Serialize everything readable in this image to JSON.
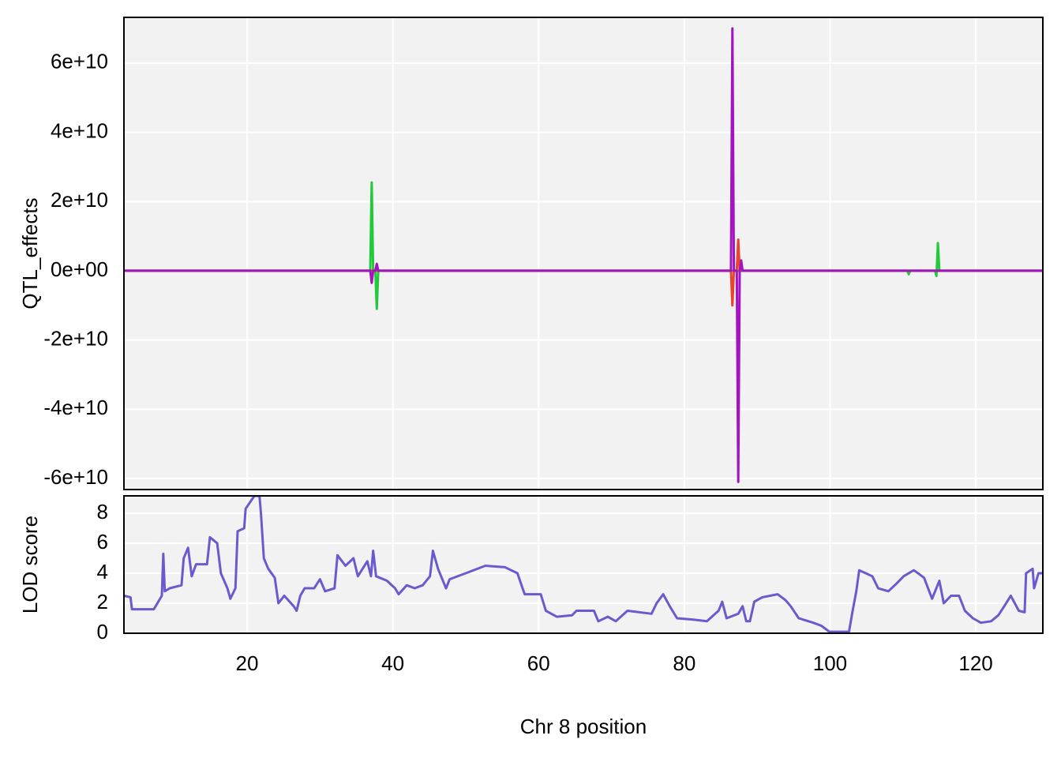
{
  "chart_data": [
    {
      "type": "line",
      "ylabel": "QTL_effects",
      "x": [
        3.1,
        36.9,
        37.1,
        37.3,
        37.6,
        37.8,
        38.0,
        86.4,
        86.6,
        86.8,
        87.2,
        87.4,
        87.6,
        87.8,
        88.0,
        110.6,
        110.8,
        111.0,
        114.4,
        114.6,
        114.8,
        115.0,
        129.2
      ],
      "series": [
        {
          "color": "#22c93a",
          "values": [
            0,
            0,
            25500000000,
            0,
            0,
            -11000000000,
            0,
            0,
            0,
            0,
            0,
            0,
            0,
            0,
            0,
            0,
            -1000000000,
            0,
            0,
            -1500000000,
            8000000000,
            0,
            0
          ]
        },
        {
          "color": "#e8452c",
          "values": [
            0,
            0,
            0,
            0,
            0,
            0,
            0,
            0,
            -10000000000,
            0,
            0,
            9000000000,
            0,
            0,
            0,
            0,
            0,
            0,
            0,
            0,
            0,
            0,
            0
          ]
        },
        {
          "color": "#a314c0",
          "values": [
            0,
            0,
            -3500000000,
            0,
            0,
            2000000000,
            0,
            0,
            70000000000,
            0,
            0,
            -61000000000,
            0,
            3000000000,
            0,
            0,
            0,
            0,
            0,
            0,
            0,
            0,
            0
          ]
        }
      ],
      "xlim": [
        3.1,
        129.2
      ],
      "xticks": [
        20,
        40,
        60,
        80,
        100,
        120
      ],
      "ylim": [
        -63200000000,
        73200000000
      ],
      "yticks": [
        {
          "value": 60000000000,
          "label": "6e+10"
        },
        {
          "value": 40000000000,
          "label": "4e+10"
        },
        {
          "value": 20000000000,
          "label": "2e+10"
        },
        {
          "value": 0,
          "label": "0e+00"
        },
        {
          "value": -20000000000,
          "label": "-2e+10"
        },
        {
          "value": -40000000000,
          "label": "-4e+10"
        },
        {
          "value": -60000000000,
          "label": "-6e+10"
        }
      ],
      "grid": true
    },
    {
      "type": "line",
      "ylabel": "LOD score",
      "xlabel": "Chr 8 position",
      "color": "#6a5acd",
      "x": [
        3.1,
        4.0,
        4.2,
        7.2,
        8.3,
        8.5,
        8.7,
        9.4,
        11.0,
        11.3,
        11.9,
        12.4,
        13.0,
        14.5,
        14.9,
        15.9,
        16.4,
        17.3,
        17.7,
        18.4,
        18.7,
        19.6,
        19.8,
        21.0,
        21.7,
        21.9,
        22.3,
        22.9,
        23.8,
        24.3,
        25.1,
        26.4,
        26.8,
        27.3,
        27.9,
        29.2,
        30.0,
        30.7,
        32.0,
        32.4,
        33.5,
        34.6,
        35.2,
        36.5,
        37.0,
        37.3,
        37.7,
        39.2,
        40.3,
        40.8,
        41.9,
        43.0,
        44.1,
        45.1,
        45.5,
        46.2,
        47.3,
        47.8,
        50.0,
        52.7,
        55.4,
        57.1,
        57.8,
        58.1,
        60.3,
        61.0,
        62.5,
        64.6,
        65.2,
        67.6,
        68.2,
        69.5,
        70.6,
        72.2,
        75.5,
        76.2,
        77.1,
        78.0,
        79.0,
        81.4,
        83.1,
        84.7,
        85.2,
        85.8,
        87.4,
        88.0,
        88.5,
        89.0,
        89.6,
        90.7,
        92.8,
        93.9,
        94.6,
        95.7,
        97.7,
        98.8,
        99.9,
        102.6,
        103.1,
        103.6,
        104.0,
        105.8,
        106.6,
        108.0,
        109.1,
        110.1,
        111.5,
        112.9,
        114.0,
        115.0,
        115.6,
        116.6,
        117.7,
        118.5,
        119.6,
        120.7,
        122.1,
        123.1,
        123.9,
        124.8,
        125.9,
        126.7,
        126.9,
        127.8,
        128.0,
        128.6,
        129.2
      ],
      "values": [
        2.5,
        2.4,
        1.6,
        1.6,
        2.5,
        5.3,
        2.8,
        3.0,
        3.2,
        5.0,
        5.7,
        3.8,
        4.6,
        4.6,
        6.4,
        6.0,
        4.0,
        3.0,
        2.3,
        3.0,
        6.8,
        7.0,
        8.3,
        9.16,
        9.16,
        8.0,
        5.0,
        4.3,
        3.7,
        2.0,
        2.5,
        1.8,
        1.5,
        2.5,
        3.0,
        3.0,
        3.6,
        2.8,
        3.0,
        5.2,
        4.5,
        5.0,
        3.8,
        4.8,
        3.8,
        5.5,
        3.8,
        3.5,
        3.0,
        2.6,
        3.2,
        3.0,
        3.2,
        3.8,
        5.5,
        4.3,
        3.0,
        3.6,
        4.0,
        4.5,
        4.4,
        4.0,
        3.0,
        2.6,
        2.6,
        1.5,
        1.1,
        1.2,
        1.5,
        1.5,
        0.8,
        1.1,
        0.8,
        1.5,
        1.3,
        2.0,
        2.6,
        1.8,
        1.0,
        0.9,
        0.8,
        1.5,
        2.1,
        1.0,
        1.3,
        1.8,
        0.8,
        0.8,
        2.1,
        2.4,
        2.6,
        2.2,
        1.8,
        1.0,
        0.7,
        0.5,
        0.1,
        0.1,
        1.5,
        2.8,
        4.2,
        3.8,
        3.0,
        2.8,
        3.3,
        3.8,
        4.2,
        3.7,
        2.3,
        3.5,
        2.0,
        2.5,
        2.5,
        1.5,
        1.0,
        0.7,
        0.8,
        1.2,
        1.8,
        2.5,
        1.5,
        1.4,
        4.0,
        4.3,
        3.0,
        4.0,
        4.0
      ],
      "xlim": [
        3.1,
        129.2
      ],
      "xticks": [
        20,
        40,
        60,
        80,
        100,
        120
      ],
      "ylim": [
        0,
        9.16
      ],
      "yticks": [
        0,
        2,
        4,
        6,
        8
      ],
      "grid": true
    }
  ]
}
